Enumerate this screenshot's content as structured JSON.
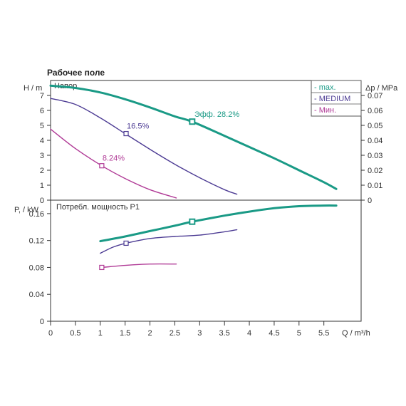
{
  "chart_title": "Рабочее поле",
  "chart_data": [
    {
      "type": "line",
      "title": "Напор",
      "ylabel": "H / m",
      "y2label": "Δp / MPa",
      "xlim": [
        0,
        6.25
      ],
      "ylim": [
        0,
        8
      ],
      "y2lim": [
        0,
        0.08
      ],
      "yticks": [
        0,
        1,
        2,
        3,
        4,
        5,
        6,
        7
      ],
      "y2ticks": [
        0,
        0.01,
        0.02,
        0.03,
        0.04,
        0.05,
        0.06,
        0.07
      ],
      "grid": false,
      "legend_position": "top-right",
      "series": [
        {
          "name": "- max.",
          "color": "#1a9a86",
          "x": [
            0,
            0.5,
            1.0,
            1.5,
            2.0,
            2.5,
            2.85,
            3.5,
            4.0,
            4.5,
            5.0,
            5.5,
            5.75
          ],
          "y": [
            7.65,
            7.5,
            7.2,
            6.75,
            6.2,
            5.6,
            5.25,
            4.3,
            3.55,
            2.8,
            2.0,
            1.2,
            0.75
          ],
          "marker": {
            "x": 2.85,
            "y": 5.25,
            "label": "Эфф.  28.2%"
          }
        },
        {
          "name": "- MEDIUM",
          "color": "#4d3c94",
          "x": [
            0,
            0.5,
            1.0,
            1.5,
            2.0,
            2.5,
            3.0,
            3.5,
            3.75
          ],
          "y": [
            6.8,
            6.4,
            5.5,
            4.45,
            3.4,
            2.4,
            1.5,
            0.7,
            0.4
          ],
          "marker": {
            "x": 1.52,
            "y": 4.45,
            "label": "16.5%"
          }
        },
        {
          "name": "- Мин.",
          "color": "#b03a96",
          "x": [
            0,
            0.5,
            1.03,
            1.5,
            2.0,
            2.53
          ],
          "y": [
            4.75,
            3.45,
            2.3,
            1.45,
            0.7,
            0.15
          ],
          "marker": {
            "x": 1.03,
            "y": 2.3,
            "label": "8.24%"
          }
        }
      ]
    },
    {
      "type": "line",
      "title": "Потребл. мощность P1",
      "xlabel": "Q / m³/h",
      "ylabel": "P, / kW",
      "xlim": [
        0,
        6.25
      ],
      "ylim": [
        0,
        0.18
      ],
      "xticks": [
        0,
        0.5,
        1,
        1.5,
        2,
        2.5,
        3,
        3.5,
        4,
        4.5,
        5,
        5.5
      ],
      "yticks": [
        0,
        0.04,
        0.08,
        0.12,
        0.16
      ],
      "grid": false,
      "series": [
        {
          "name": "max.",
          "color": "#1a9a86",
          "x": [
            1.0,
            1.5,
            2.0,
            2.5,
            2.85,
            3.5,
            4.0,
            4.5,
            5.0,
            5.5,
            5.75
          ],
          "y": [
            0.119,
            0.126,
            0.134,
            0.142,
            0.148,
            0.157,
            0.163,
            0.168,
            0.171,
            0.172,
            0.172
          ],
          "marker": {
            "x": 2.85,
            "y": 0.148
          }
        },
        {
          "name": "MEDIUM",
          "color": "#4d3c94",
          "x": [
            1.0,
            1.25,
            1.52,
            2.0,
            2.5,
            3.0,
            3.5,
            3.75
          ],
          "y": [
            0.101,
            0.11,
            0.116,
            0.123,
            0.126,
            0.128,
            0.133,
            0.136
          ],
          "marker": {
            "x": 1.52,
            "y": 0.116
          }
        },
        {
          "name": "Мин.",
          "color": "#b03a96",
          "x": [
            1.03,
            1.5,
            2.0,
            2.53
          ],
          "y": [
            0.08,
            0.083,
            0.085,
            0.085
          ],
          "marker": {
            "x": 1.03,
            "y": 0.08
          }
        }
      ]
    }
  ]
}
